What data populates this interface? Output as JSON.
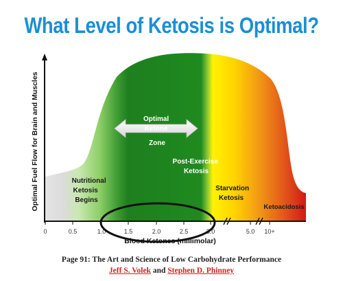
{
  "title": "What Level of Ketosis is Optimal?",
  "y_axis_label": "Optimal Fuel Flow for Brain and Muscles",
  "x_axis_label": "Blood Ketones (millimolar)",
  "x_ticks": [
    "0",
    "0.5",
    "1.0",
    "1.5",
    "2.0",
    "2.5",
    "3.0",
    "5.0",
    "10+"
  ],
  "zones": {
    "nutritional": [
      "Nutritional",
      "Ketosis",
      "Begins"
    ],
    "optimal": [
      "Optimal",
      "Ketone",
      "Zone"
    ],
    "post_exercise": [
      "Post-Exercise",
      "Ketosis"
    ],
    "starvation": [
      "Starvation",
      "Ketosis"
    ],
    "ketoacidosis": "Ketoacidosis"
  },
  "footer": {
    "book": "Page 91: The Art and Science of Low Carbohydrate Performance",
    "author1": "Jeff S. Volek",
    "and": "and",
    "author2": "Stephen D. Phinney"
  },
  "colors": {
    "title": "#1a8fd6",
    "green_dark": "#1e7a1e",
    "green_light": "#9ed67a",
    "yellow": "#ffe600",
    "orange": "#f39a1a",
    "red": "#d8231a",
    "gray": "#d9d9d9"
  }
}
